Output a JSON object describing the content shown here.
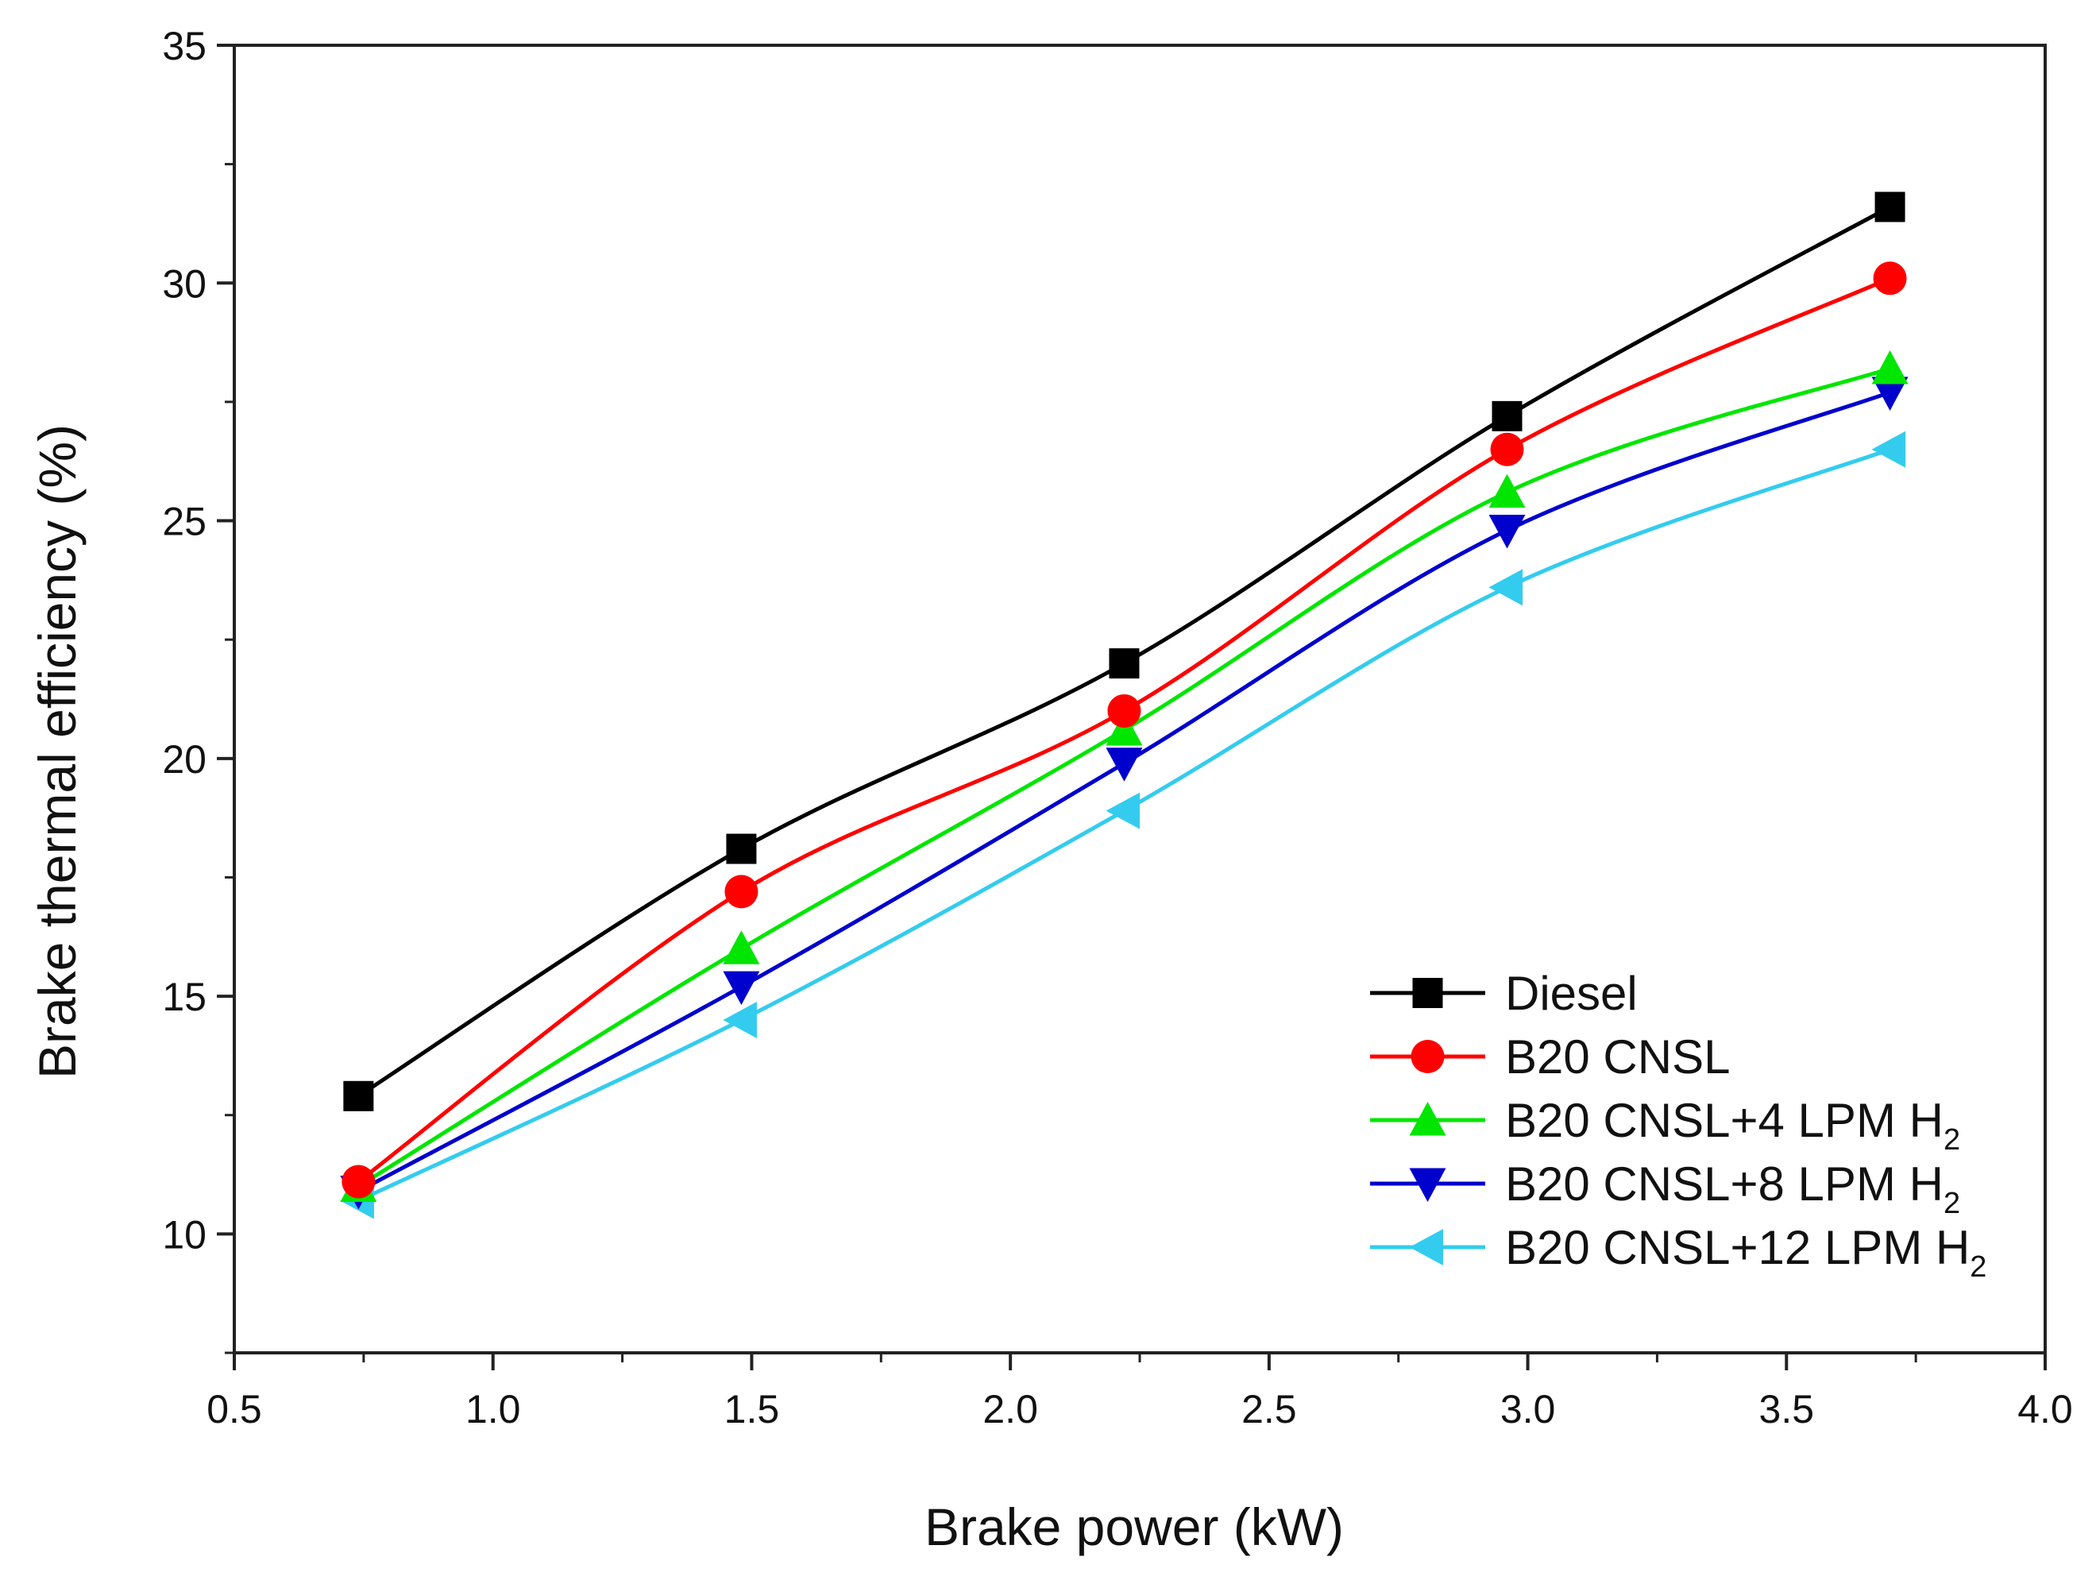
{
  "chart_data": {
    "type": "line",
    "title": "",
    "xlabel": "Brake power (kW)",
    "ylabel": "Brake thermal efficiency (%)",
    "xlim": [
      0.5,
      4.0
    ],
    "ylim": [
      7.5,
      35
    ],
    "x_ticks": [
      "0.5",
      "1.0",
      "1.5",
      "2.0",
      "2.5",
      "3.0",
      "3.5",
      "4.0"
    ],
    "y_ticks": [
      "10",
      "15",
      "20",
      "25",
      "30",
      "35"
    ],
    "legend_position": "bottom-right",
    "x": [
      0.74,
      1.48,
      2.22,
      2.96,
      3.7
    ],
    "series": [
      {
        "name": "Diesel",
        "label_main": "Diesel",
        "label_sub": "",
        "color": "#000000",
        "marker": "square",
        "values": [
          12.9,
          18.1,
          22.0,
          27.2,
          31.6
        ]
      },
      {
        "name": "B20 CNSL",
        "label_main": "B20 CNSL",
        "label_sub": "",
        "color": "#ff0000",
        "marker": "circle",
        "values": [
          11.1,
          17.2,
          21.0,
          26.5,
          30.1
        ]
      },
      {
        "name": "B20 CNSL+4 LPM H2",
        "label_main": "B20 CNSL+4 LPM H",
        "label_sub": "2",
        "color": "#00e600",
        "marker": "triangle-up",
        "values": [
          11.0,
          16.0,
          20.6,
          25.6,
          28.2
        ]
      },
      {
        "name": "B20 CNSL+8 LPM H2",
        "label_main": "B20 CNSL+8 LPM H",
        "label_sub": "2",
        "color": "#0000cc",
        "marker": "triangle-down",
        "values": [
          10.9,
          15.2,
          19.9,
          24.8,
          27.7
        ]
      },
      {
        "name": "B20 CNSL+12 LPM H2",
        "label_main": "B20 CNSL+12 LPM H",
        "label_sub": "2",
        "color": "#33ccee",
        "marker": "triangle-left",
        "values": [
          10.7,
          14.5,
          18.9,
          23.6,
          26.5
        ]
      }
    ]
  }
}
